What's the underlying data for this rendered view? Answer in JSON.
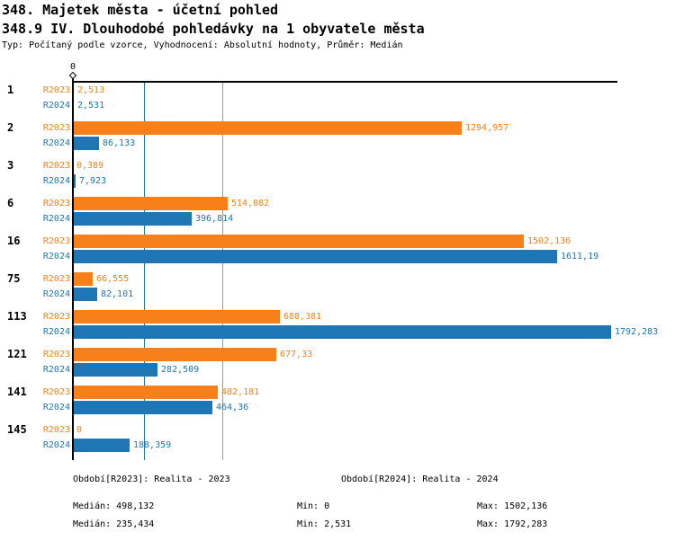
{
  "header": {
    "title_line1": "348. Majetek města - účetní pohled",
    "title_line2": "348.9 IV. Dlouhodobé pohledávky na 1 obyvatele města",
    "subtitle": "Typ: Počítaný podle vzorce, Vyhodnocení: Absolutní hodnoty, Průměr: Medián"
  },
  "colors": {
    "r2023_orange": "#F8801A",
    "r2024_blue": "#1F76B4",
    "axis_black": "#000000",
    "background": "#FFFFFF"
  },
  "chart_data": {
    "type": "bar",
    "orientation": "horizontal",
    "title": "348.9 IV. Dlouhodobé pohledávky na 1 obyvatele města",
    "xlabel": "",
    "ylabel": "",
    "xlim": [
      0,
      1810
    ],
    "grid": "vertical-median-lines",
    "legend_position": "bottom",
    "categories": [
      "1",
      "2",
      "3",
      "6",
      "16",
      "75",
      "113",
      "121",
      "141",
      "145"
    ],
    "series": [
      {
        "name": "R2023",
        "color": "#F8801A",
        "values": [
          2.513,
          1294.957,
          0.389,
          514.082,
          1502.136,
          66.555,
          688.381,
          677.33,
          482.181,
          0
        ],
        "labels": [
          "2,513",
          "1294,957",
          "0,389",
          "514,082",
          "1502,136",
          "66,555",
          "688,381",
          "677,33",
          "482,181",
          "0"
        ]
      },
      {
        "name": "R2024",
        "color": "#1F76B4",
        "values": [
          2.531,
          86.133,
          7.923,
          396.814,
          1611.19,
          82.101,
          1792.283,
          282.509,
          464.36,
          188.359
        ],
        "labels": [
          "2,531",
          "86,133",
          "7,923",
          "396,814",
          "1611,19",
          "82,101",
          "1792,283",
          "282,509",
          "464,36",
          "188,359"
        ]
      }
    ],
    "gridlines": [
      {
        "meaning": "median-R2024",
        "value": 235.434,
        "color": "#1F76B4"
      },
      {
        "meaning": "median-R2023",
        "value": 498.132,
        "color": "#F8801A"
      }
    ],
    "axis": {
      "zero_label": "0"
    }
  },
  "legend": {
    "r2023": "Období[R2023]: Realita - 2023",
    "r2024": "Období[R2024]: Realita - 2024"
  },
  "stats": {
    "r2023": {
      "median": "Medián: 498,132",
      "min": "Min: 0",
      "max": "Max: 1502,136"
    },
    "r2024": {
      "median": "Medián: 235,434",
      "min": "Min: 2,531",
      "max": "Max: 1792,283"
    }
  }
}
